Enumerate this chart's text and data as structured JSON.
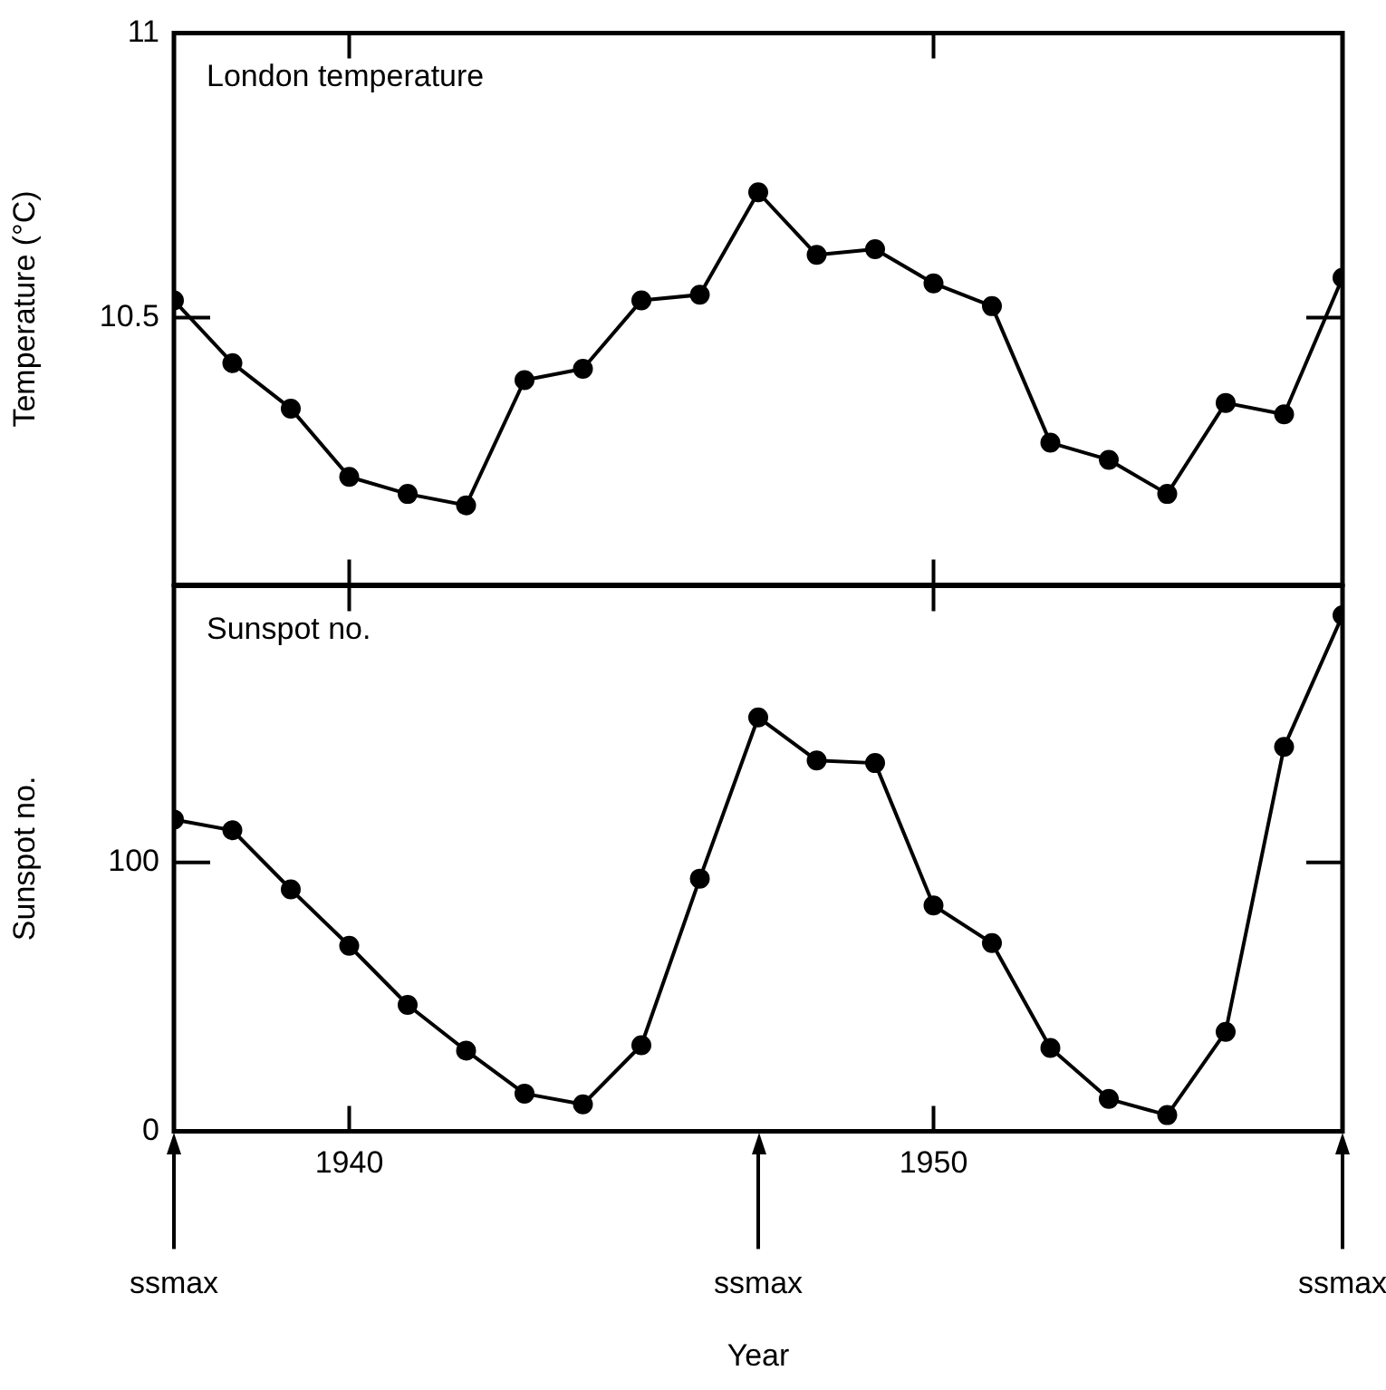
{
  "chart_data": [
    {
      "type": "line",
      "ylabel": "Temperature (°C)",
      "annotations": [
        "London temperature"
      ],
      "x": [
        1937,
        1938,
        1939,
        1940,
        1941,
        1942,
        1943,
        1944,
        1945,
        1946,
        1947,
        1948,
        1949,
        1950,
        1951,
        1952,
        1953,
        1954,
        1955,
        1956,
        1957
      ],
      "values": [
        10.53,
        10.42,
        10.34,
        10.22,
        10.19,
        10.17,
        10.39,
        10.41,
        10.53,
        10.54,
        10.72,
        10.61,
        10.62,
        10.56,
        10.52,
        10.28,
        10.25,
        10.19,
        10.35,
        10.33,
        10.57
      ],
      "color": "#000000",
      "marker": "circle",
      "xlim": [
        1937,
        1957
      ],
      "xticks": [
        {
          "value": 1940,
          "label": null
        },
        {
          "value": 1950,
          "label": null
        }
      ],
      "ylim": [
        10.03,
        11
      ],
      "yticks": [
        10.5,
        11
      ],
      "tick_labels": "y"
    },
    {
      "type": "line",
      "ylabel": "Sunspot no.",
      "xlabel": "Year",
      "x": [
        1937,
        1938,
        1939,
        1940,
        1941,
        1942,
        1943,
        1944,
        1945,
        1946,
        1947,
        1948,
        1949,
        1950,
        1951,
        1952,
        1953,
        1954,
        1955,
        1956,
        1957
      ],
      "values": [
        116,
        112,
        90,
        69,
        47,
        30,
        14,
        10,
        32,
        94,
        154,
        138,
        137,
        84,
        70,
        31,
        12,
        6,
        37,
        143,
        192
      ],
      "color": "#000000",
      "marker": "circle",
      "xlim": [
        1937,
        1957
      ],
      "xticks": [
        1940,
        1950
      ],
      "ylim": [
        0,
        203
      ],
      "yticks": [
        0,
        100
      ],
      "annotations": [
        "Sunspot no."
      ],
      "ref_lines": [
        {
          "axis": "x",
          "value": 1937,
          "label": "ssmax"
        },
        {
          "axis": "x",
          "value": 1947,
          "label": "ssmax"
        },
        {
          "axis": "x",
          "value": 1957,
          "label": "ssmax"
        }
      ]
    }
  ]
}
